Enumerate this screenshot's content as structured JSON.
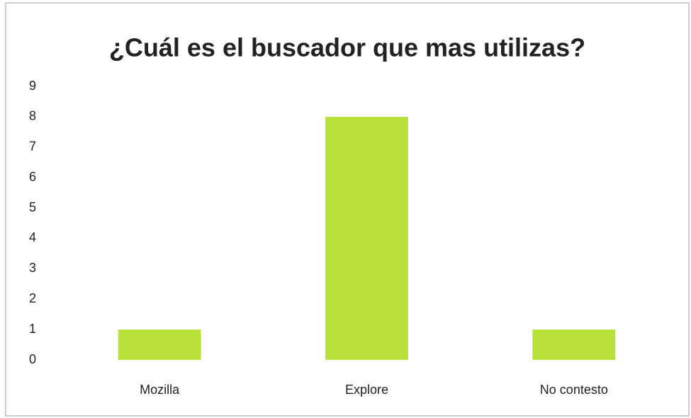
{
  "chart_data": {
    "type": "bar",
    "title": "¿Cuál es el buscador que mas utilizas?",
    "categories": [
      "Mozilla",
      "Explore",
      "No contesto"
    ],
    "values": [
      1,
      8,
      1
    ],
    "color": "#b8e23a",
    "ylim": [
      0,
      9
    ],
    "yticks": [
      0,
      1,
      2,
      3,
      4,
      5,
      6,
      7,
      8,
      9
    ],
    "grid": false
  }
}
